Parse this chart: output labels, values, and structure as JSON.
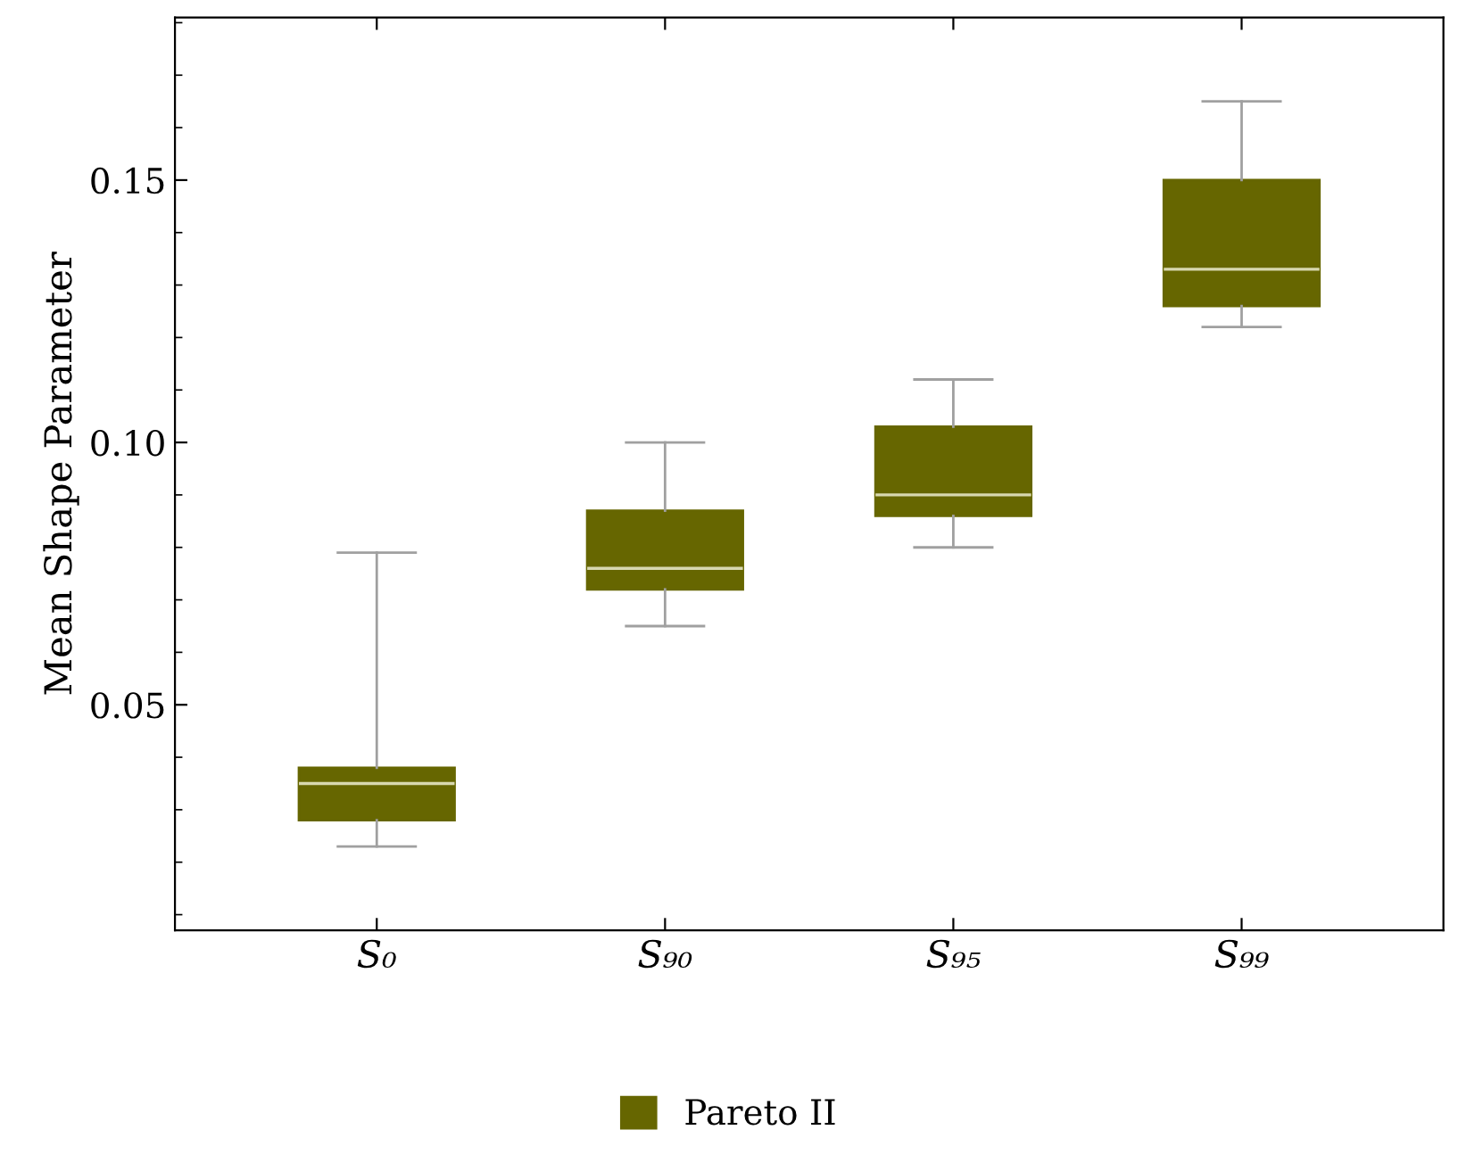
{
  "chart_data": {
    "type": "box",
    "ylabel": "Mean Shape Parameter",
    "categories": [
      "S₀",
      "S₉₀",
      "S₉₅",
      "S₉₉"
    ],
    "ylim": [
      0.007,
      0.181
    ],
    "yticks": [
      0.05,
      {
        "value": 0.1,
        "label": "0.10"
      },
      0.15
    ],
    "legend": "bottom",
    "grid": false,
    "series": [
      {
        "name": "Pareto II",
        "color": "#666600",
        "boxes": [
          {
            "low": 0.023,
            "q1": 0.028,
            "median": 0.035,
            "q3": 0.038,
            "high": 0.079
          },
          {
            "low": 0.065,
            "q1": 0.072,
            "median": 0.076,
            "q3": 0.087,
            "high": 0.1
          },
          {
            "low": 0.08,
            "q1": 0.086,
            "median": 0.09,
            "q3": 0.103,
            "high": 0.112
          },
          {
            "low": 0.122,
            "q1": 0.126,
            "median": 0.133,
            "q3": 0.15,
            "high": 0.165
          }
        ]
      }
    ]
  }
}
